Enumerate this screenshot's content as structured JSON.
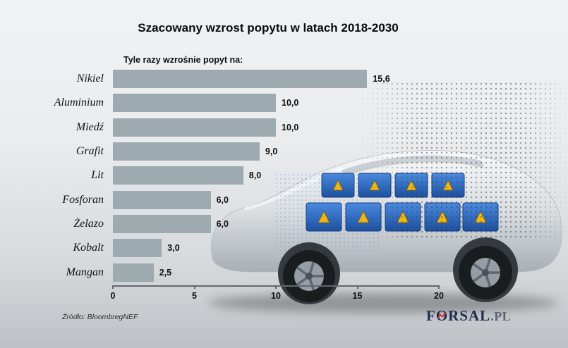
{
  "header": {
    "title": "Szacowany wzrost popytu w latach 2018-2030",
    "subtitle": "Tyle razy wzrośnie popyt na:"
  },
  "footer": {
    "source": "Źródło: BloombregNEF",
    "logo_brand": "FORSAL",
    "logo_tld": ".PL"
  },
  "colors": {
    "bar": "#9daab0",
    "axis": "#63686c",
    "logo": "#1f2c50",
    "logo_accent": "#d03a2b",
    "battery_blue": "#2a62b8",
    "warning_yellow": "#f2b614"
  },
  "chart_data": {
    "type": "bar",
    "orientation": "horizontal",
    "title": "Szacowany wzrost popytu w latach 2018-2030",
    "subtitle": "Tyle razy wzrośnie popyt na:",
    "categories": [
      "Nikiel",
      "Aluminium",
      "Miedź",
      "Grafit",
      "Lit",
      "Fosforan",
      "Żelazo",
      "Kobalt",
      "Mangan"
    ],
    "values": [
      15.6,
      10.0,
      10.0,
      9.0,
      8.0,
      6.0,
      6.0,
      3.0,
      2.5
    ],
    "value_labels": [
      "15,6",
      "10,0",
      "10,0",
      "9,0",
      "8,0",
      "6,0",
      "6,0",
      "3,0",
      "2,5"
    ],
    "xlabel": "",
    "ylabel": "",
    "xlim": [
      0,
      20
    ],
    "x_ticks": [
      0,
      5,
      10,
      15,
      20
    ],
    "grid": false,
    "legend": false
  }
}
